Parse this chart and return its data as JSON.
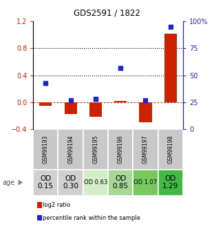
{
  "title": "GDS2591 / 1822",
  "samples": [
    "GSM99193",
    "GSM99194",
    "GSM99195",
    "GSM99196",
    "GSM99197",
    "GSM99198"
  ],
  "log2_ratio": [
    -0.055,
    -0.18,
    -0.22,
    0.02,
    -0.3,
    1.02
  ],
  "percentile_rank": [
    43,
    27,
    28,
    57,
    27,
    95
  ],
  "od_labels": [
    "OD\n0.15",
    "OD\n0.30",
    "OD 0.63",
    "OD\n0.85",
    "OD 1.07",
    "OD\n1.29"
  ],
  "od_bg_colors": [
    "#d0d0d0",
    "#d0d0d0",
    "#d4eecb",
    "#a8d896",
    "#78c860",
    "#44b844"
  ],
  "od_font_sizes": [
    7.5,
    7.5,
    6.0,
    7.5,
    6.0,
    7.5
  ],
  "ylim_left": [
    -0.4,
    1.2
  ],
  "ylim_right": [
    0,
    100
  ],
  "yticks_left": [
    -0.4,
    0.0,
    0.4,
    0.8,
    1.2
  ],
  "yticks_right": [
    0,
    25,
    50,
    75,
    100
  ],
  "bar_color": "#cc2200",
  "square_color": "#2222cc",
  "dotted_line_y": [
    0.4,
    0.8
  ],
  "dashed_line_y": 0.0,
  "left_axis_color": "#cc2200",
  "right_axis_color": "#2222cc",
  "legend_labels": [
    "log2 ratio",
    "percentile rank within the sample"
  ],
  "age_label": "age",
  "bar_width": 0.5,
  "sample_box_color": "#c8c8c8",
  "title_fontsize": 8.5
}
